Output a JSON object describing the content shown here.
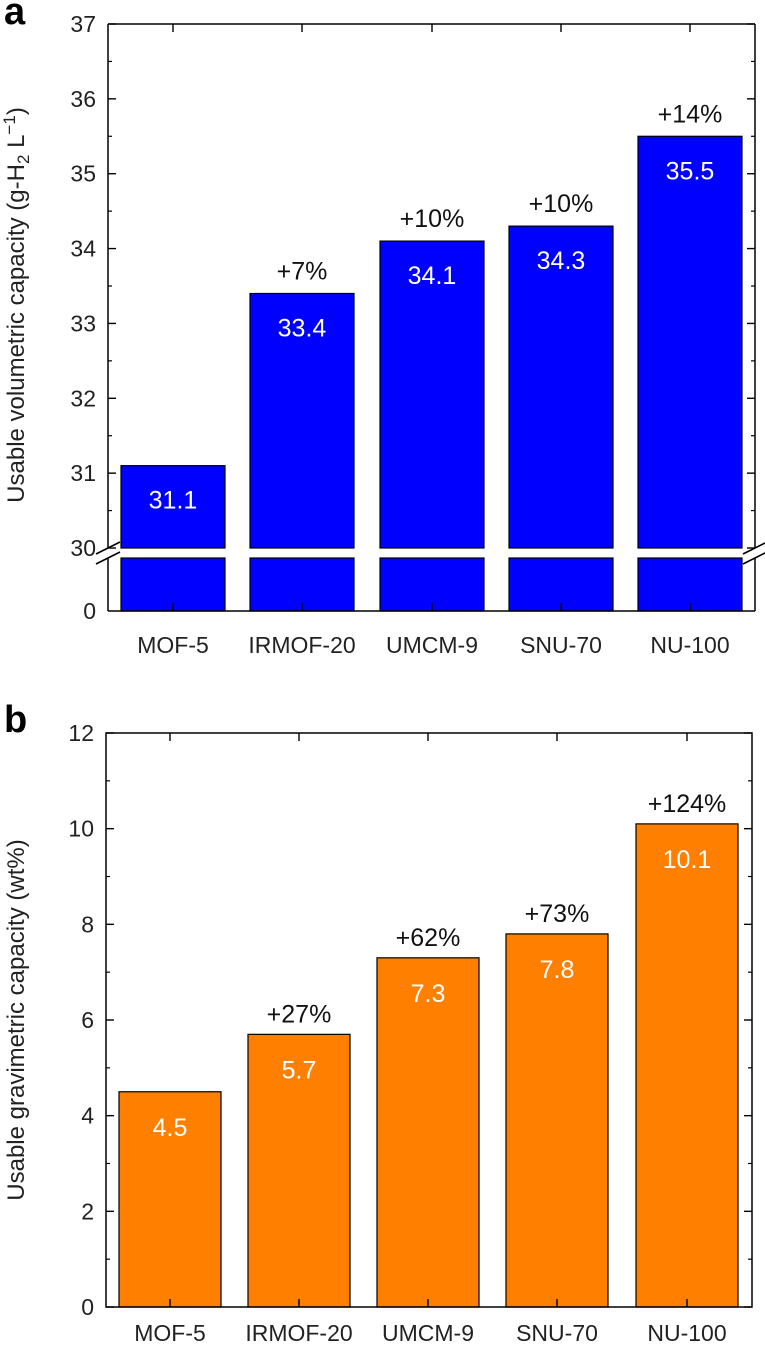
{
  "chart_data": [
    {
      "panel": "a",
      "type": "bar",
      "categories": [
        "MOF-5",
        "IRMOF-20",
        "UMCM-9",
        "SNU-70",
        "NU-100"
      ],
      "values": [
        31.1,
        33.4,
        34.1,
        34.3,
        35.5
      ],
      "value_labels": [
        "31.1",
        "33.4",
        "34.1",
        "34.3",
        "35.5"
      ],
      "percent_labels": [
        "",
        "+7%",
        "+10%",
        "+10%",
        "+14%"
      ],
      "ylabel": "Usable volumetric capacity (g-H₂ L⁻¹)",
      "ylabel_parts": {
        "pre": "Usable volumetric capacity (g-H",
        "sub": "2",
        "mid": " L",
        "sup": "−1",
        "post": ")"
      },
      "ylim": [
        30,
        37
      ],
      "yticks": [
        30,
        31,
        32,
        33,
        34,
        35,
        36,
        37
      ],
      "ylim_lower_segment": [
        0,
        30
      ],
      "yticks_lower_segment": [
        0
      ],
      "axis_break": true,
      "bar_color": "#0000ff"
    },
    {
      "panel": "b",
      "type": "bar",
      "categories": [
        "MOF-5",
        "IRMOF-20",
        "UMCM-9",
        "SNU-70",
        "NU-100"
      ],
      "values": [
        4.5,
        5.7,
        7.3,
        7.8,
        10.1
      ],
      "value_labels": [
        "4.5",
        "5.7",
        "7.3",
        "7.8",
        "10.1"
      ],
      "percent_labels": [
        "",
        "+27%",
        "+62%",
        "+73%",
        "+124%"
      ],
      "ylabel": "Usable gravimetric capacity (wt%)",
      "ylim": [
        0,
        12
      ],
      "yticks": [
        0,
        2,
        4,
        6,
        8,
        10,
        12
      ],
      "axis_break": false,
      "bar_color": "#ff8000"
    }
  ]
}
